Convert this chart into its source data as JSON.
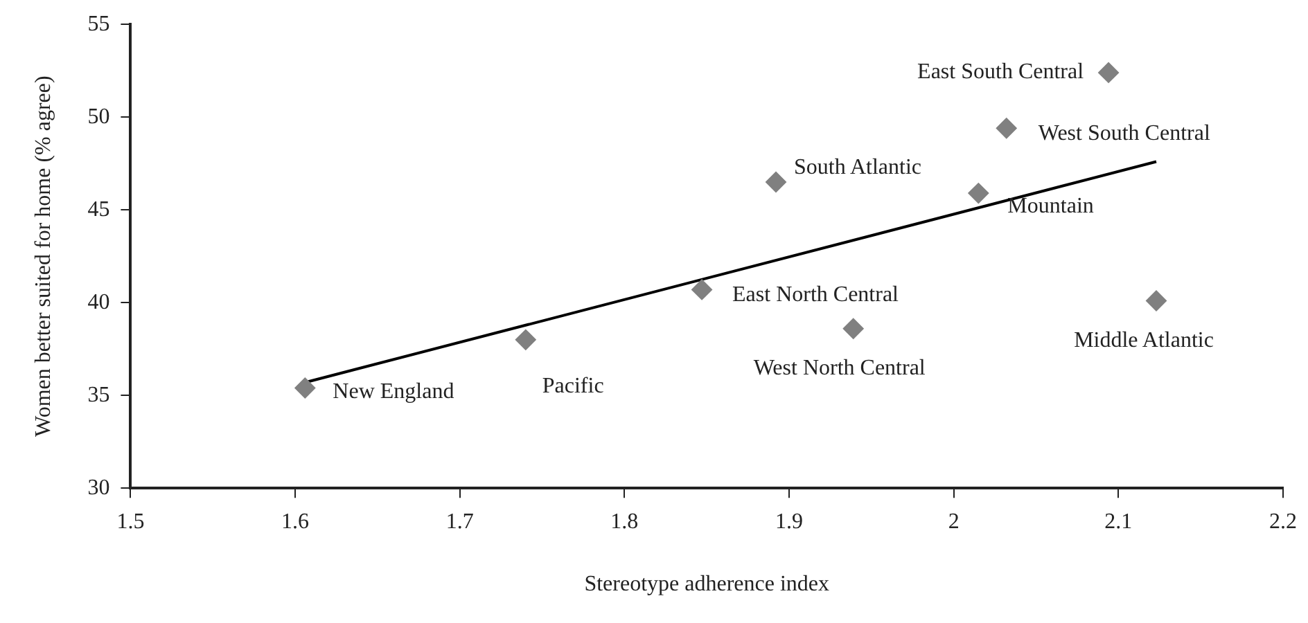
{
  "chart_data": {
    "type": "scatter",
    "xlabel": "Stereotype adherence index",
    "ylabel": "Women better suited for home (% agree)",
    "xlim": [
      1.5,
      2.2
    ],
    "xticks": [
      1.5,
      1.6,
      1.7,
      1.8,
      1.9,
      2,
      2.1,
      2.2
    ],
    "ylim": [
      30,
      55
    ],
    "yticks": [
      30,
      35,
      40,
      45,
      50,
      55
    ],
    "grid": false,
    "legend": false,
    "series": [
      {
        "type": "scatter",
        "color": "#808080",
        "marker": "diamond",
        "x": [
          1.606,
          1.74,
          1.847,
          1.939,
          1.892,
          2.015,
          2.032,
          2.094,
          2.123
        ],
        "values": [
          35.4,
          38.0,
          40.7,
          38.6,
          46.5,
          45.9,
          49.4,
          52.4,
          40.1
        ]
      },
      {
        "type": "line",
        "color": "#000000",
        "marker": "none",
        "line_style": "solid",
        "x": [
          1.606,
          2.123
        ],
        "values": [
          35.7,
          47.6
        ]
      }
    ],
    "annotations": [
      {
        "text": "New England",
        "x": 1.606,
        "y": 35.4
      },
      {
        "text": "Pacific",
        "x": 1.74,
        "y": 38.0
      },
      {
        "text": "East North Central",
        "x": 1.847,
        "y": 40.7
      },
      {
        "text": "West North Central",
        "x": 1.939,
        "y": 38.6
      },
      {
        "text": "South Atlantic",
        "x": 1.892,
        "y": 46.5
      },
      {
        "text": "Mountain",
        "x": 2.015,
        "y": 45.9
      },
      {
        "text": "West South Central",
        "x": 2.032,
        "y": 49.4
      },
      {
        "text": "East South Central",
        "x": 2.094,
        "y": 52.4
      },
      {
        "text": "Middle Atlantic",
        "x": 2.123,
        "y": 40.1
      }
    ]
  }
}
